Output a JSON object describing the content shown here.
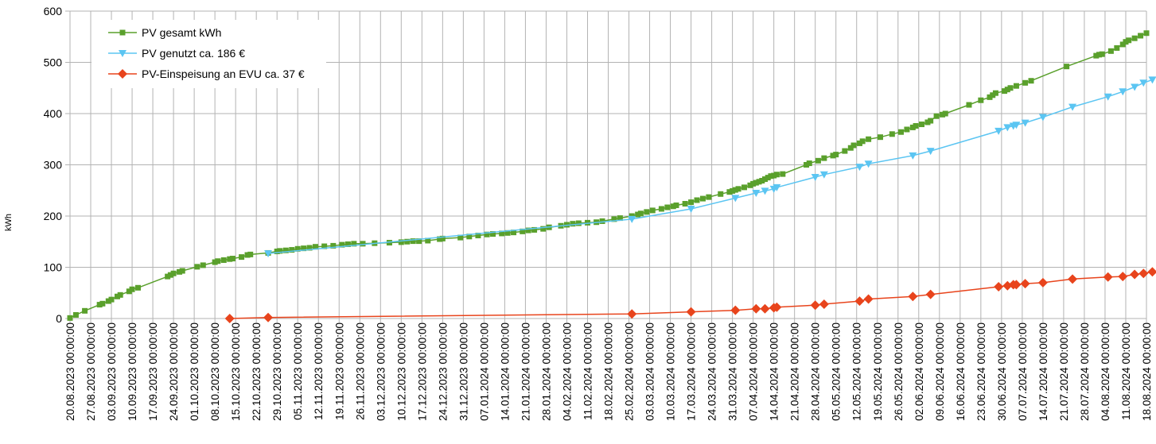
{
  "chart_data": {
    "type": "line",
    "ylabel": "kWh",
    "ylim": [
      0,
      600
    ],
    "yticks": [
      0,
      100,
      200,
      300,
      400,
      500,
      600
    ],
    "xlim": [
      "2023-08-20",
      "2024-08-18"
    ],
    "x_tick_labels": [
      "20.08.2023 00:00:00",
      "27.08.2023 00:00:00",
      "03.09.2023 00:00:00",
      "10.09.2023 00:00:00",
      "17.09.2023 00:00:00",
      "24.09.2023 00:00:00",
      "01.10.2023 00:00:00",
      "08.10.2023 00:00:00",
      "15.10.2023 00:00:00",
      "22.10.2023 00:00:00",
      "29.10.2023 00:00:00",
      "05.11.2023 00:00:00",
      "12.11.2023 00:00:00",
      "19.11.2023 00:00:00",
      "26.11.2023 00:00:00",
      "03.12.2023 00:00:00",
      "10.12.2023 00:00:00",
      "17.12.2023 00:00:00",
      "24.12.2023 00:00:00",
      "31.12.2023 00:00:00",
      "07.01.2024 00:00:00",
      "14.01.2024 00:00:00",
      "21.01.2024 00:00:00",
      "28.01.2024 00:00:00",
      "04.02.2024 00:00:00",
      "11.02.2024 00:00:00",
      "18.02.2024 00:00:00",
      "25.02.2024 00:00:00",
      "03.03.2024 00:00:00",
      "10.03.2024 00:00:00",
      "17.03.2024 00:00:00",
      "24.03.2024 00:00:00",
      "31.03.2024 00:00:00",
      "07.04.2024 00:00:00",
      "14.04.2024 00:00:00",
      "21.04.2024 00:00:00",
      "28.04.2024 00:00:00",
      "05.05.2024 00:00:00",
      "12.05.2024 00:00:00",
      "19.05.2024 00:00:00",
      "26.05.2024 00:00:00",
      "02.06.2024 00:00:00",
      "09.06.2024 00:00:00",
      "16.06.2024 00:00:00",
      "23.06.2024 00:00:00",
      "30.06.2024 00:00:00",
      "07.07.2024 00:00:00",
      "14.07.2024 00:00:00",
      "21.07.2024 00:00:00",
      "28.07.2024 00:00:00",
      "04.08.2024 00:00:00",
      "11.08.2024 00:00:00",
      "18.08.2024 00:00:00"
    ],
    "grid": true,
    "legend_position": "top-left",
    "series": [
      {
        "name": "PV gesamt kWh",
        "color": "#5aa02c",
        "marker": "square",
        "points": [
          [
            "2023-08-20",
            1
          ],
          [
            "2023-08-22",
            7
          ],
          [
            "2023-08-25",
            15
          ],
          [
            "2023-08-30",
            27
          ],
          [
            "2023-08-31",
            29
          ],
          [
            "2023-09-02",
            34
          ],
          [
            "2023-09-03",
            37
          ],
          [
            "2023-09-05",
            43
          ],
          [
            "2023-09-06",
            46
          ],
          [
            "2023-09-09",
            53
          ],
          [
            "2023-09-10",
            57
          ],
          [
            "2023-09-12",
            60
          ],
          [
            "2023-09-22",
            82
          ],
          [
            "2023-09-23",
            85
          ],
          [
            "2023-09-24",
            88
          ],
          [
            "2023-09-26",
            91
          ],
          [
            "2023-09-27",
            93
          ],
          [
            "2023-10-02",
            101
          ],
          [
            "2023-10-04",
            104
          ],
          [
            "2023-10-08",
            110
          ],
          [
            "2023-10-09",
            112
          ],
          [
            "2023-10-11",
            114
          ],
          [
            "2023-10-13",
            116
          ],
          [
            "2023-10-14",
            117
          ],
          [
            "2023-10-17",
            120
          ],
          [
            "2023-10-19",
            124
          ],
          [
            "2023-10-20",
            125
          ],
          [
            "2023-10-26",
            128
          ],
          [
            "2023-10-29",
            131
          ],
          [
            "2023-10-30",
            132
          ],
          [
            "2023-11-01",
            133
          ],
          [
            "2023-11-03",
            134
          ],
          [
            "2023-11-05",
            136
          ],
          [
            "2023-11-07",
            137
          ],
          [
            "2023-11-09",
            138
          ],
          [
            "2023-11-11",
            140
          ],
          [
            "2023-11-14",
            141
          ],
          [
            "2023-11-17",
            142
          ],
          [
            "2023-11-20",
            144
          ],
          [
            "2023-11-22",
            145
          ],
          [
            "2023-11-24",
            146
          ],
          [
            "2023-11-27",
            146
          ],
          [
            "2023-12-01",
            147
          ],
          [
            "2023-12-06",
            148
          ],
          [
            "2023-12-10",
            149
          ],
          [
            "2023-12-12",
            150
          ],
          [
            "2023-12-14",
            151
          ],
          [
            "2023-12-16",
            151
          ],
          [
            "2023-12-19",
            152
          ],
          [
            "2023-12-23",
            155
          ],
          [
            "2023-12-24",
            156
          ],
          [
            "2023-12-30",
            158
          ],
          [
            "2024-01-02",
            160
          ],
          [
            "2024-01-05",
            162
          ],
          [
            "2024-01-08",
            164
          ],
          [
            "2024-01-10",
            165
          ],
          [
            "2024-01-13",
            166
          ],
          [
            "2024-01-15",
            167
          ],
          [
            "2024-01-17",
            168
          ],
          [
            "2024-01-20",
            170
          ],
          [
            "2024-01-22",
            172
          ],
          [
            "2024-01-24",
            173
          ],
          [
            "2024-01-27",
            175
          ],
          [
            "2024-01-29",
            178
          ],
          [
            "2024-02-02",
            181
          ],
          [
            "2024-02-04",
            183
          ],
          [
            "2024-02-06",
            185
          ],
          [
            "2024-02-08",
            186
          ],
          [
            "2024-02-11",
            187
          ],
          [
            "2024-02-14",
            188
          ],
          [
            "2024-02-16",
            190
          ],
          [
            "2024-02-20",
            194
          ],
          [
            "2024-02-22",
            196
          ],
          [
            "2024-02-26",
            200
          ],
          [
            "2024-02-28",
            203
          ],
          [
            "2024-02-29",
            205
          ],
          [
            "2024-03-02",
            208
          ],
          [
            "2024-03-04",
            211
          ],
          [
            "2024-03-07",
            214
          ],
          [
            "2024-03-09",
            217
          ],
          [
            "2024-03-11",
            219
          ],
          [
            "2024-03-12",
            221
          ],
          [
            "2024-03-15",
            224
          ],
          [
            "2024-03-17",
            227
          ],
          [
            "2024-03-19",
            231
          ],
          [
            "2024-03-21",
            234
          ],
          [
            "2024-03-23",
            237
          ],
          [
            "2024-03-27",
            243
          ],
          [
            "2024-03-30",
            247
          ],
          [
            "2024-03-31",
            249
          ],
          [
            "2024-04-01",
            251
          ],
          [
            "2024-04-02",
            253
          ],
          [
            "2024-04-04",
            256
          ],
          [
            "2024-04-06",
            260
          ],
          [
            "2024-04-07",
            263
          ],
          [
            "2024-04-08",
            265
          ],
          [
            "2024-04-09",
            267
          ],
          [
            "2024-04-10",
            269
          ],
          [
            "2024-04-11",
            272
          ],
          [
            "2024-04-12",
            275
          ],
          [
            "2024-04-13",
            278
          ],
          [
            "2024-04-14",
            279
          ],
          [
            "2024-04-15",
            281
          ],
          [
            "2024-04-17",
            282
          ],
          [
            "2024-04-25",
            300
          ],
          [
            "2024-04-26",
            303
          ],
          [
            "2024-04-29",
            308
          ],
          [
            "2024-05-01",
            313
          ],
          [
            "2024-05-04",
            318
          ],
          [
            "2024-05-05",
            320
          ],
          [
            "2024-05-08",
            327
          ],
          [
            "2024-05-10",
            333
          ],
          [
            "2024-05-11",
            338
          ],
          [
            "2024-05-13",
            342
          ],
          [
            "2024-05-14",
            346
          ],
          [
            "2024-05-16",
            350
          ],
          [
            "2024-05-20",
            354
          ],
          [
            "2024-05-24",
            360
          ],
          [
            "2024-05-27",
            364
          ],
          [
            "2024-05-29",
            369
          ],
          [
            "2024-05-31",
            373
          ],
          [
            "2024-06-01",
            376
          ],
          [
            "2024-06-03",
            379
          ],
          [
            "2024-06-05",
            383
          ],
          [
            "2024-06-06",
            386
          ],
          [
            "2024-06-08",
            395
          ],
          [
            "2024-06-10",
            398
          ],
          [
            "2024-06-11",
            400
          ],
          [
            "2024-06-19",
            417
          ],
          [
            "2024-06-23",
            426
          ],
          [
            "2024-06-26",
            432
          ],
          [
            "2024-06-27",
            436
          ],
          [
            "2024-06-28",
            440
          ],
          [
            "2024-07-01",
            444
          ],
          [
            "2024-07-02",
            447
          ],
          [
            "2024-07-03",
            450
          ],
          [
            "2024-07-05",
            454
          ],
          [
            "2024-07-08",
            460
          ],
          [
            "2024-07-10",
            464
          ],
          [
            "2024-07-22",
            492
          ],
          [
            "2024-08-01",
            513
          ],
          [
            "2024-08-02",
            515
          ],
          [
            "2024-08-03",
            516
          ],
          [
            "2024-08-06",
            522
          ],
          [
            "2024-08-08",
            528
          ],
          [
            "2024-08-10",
            535
          ],
          [
            "2024-08-11",
            540
          ],
          [
            "2024-08-12",
            543
          ],
          [
            "2024-08-14",
            547
          ],
          [
            "2024-08-16",
            552
          ],
          [
            "2024-08-18",
            557
          ]
        ]
      },
      {
        "name": "PV genutzt ca. 186 €",
        "color": "#5bc5f2",
        "marker": "triangle-down",
        "points": [
          [
            "2023-10-26",
            127
          ],
          [
            "2024-02-26",
            194
          ],
          [
            "2024-03-17",
            214
          ],
          [
            "2024-04-01",
            235
          ],
          [
            "2024-04-08",
            245
          ],
          [
            "2024-04-11",
            249
          ],
          [
            "2024-04-14",
            253
          ],
          [
            "2024-04-15",
            256
          ],
          [
            "2024-04-28",
            276
          ],
          [
            "2024-05-01",
            281
          ],
          [
            "2024-05-13",
            296
          ],
          [
            "2024-05-16",
            302
          ],
          [
            "2024-05-31",
            318
          ],
          [
            "2024-06-06",
            327
          ],
          [
            "2024-06-29",
            366
          ],
          [
            "2024-07-02",
            373
          ],
          [
            "2024-07-04",
            376
          ],
          [
            "2024-07-05",
            378
          ],
          [
            "2024-07-08",
            382
          ],
          [
            "2024-07-14",
            393
          ],
          [
            "2024-07-24",
            413
          ],
          [
            "2024-08-05",
            433
          ],
          [
            "2024-08-10",
            443
          ],
          [
            "2024-08-14",
            452
          ],
          [
            "2024-08-17",
            460
          ],
          [
            "2024-08-20",
            466
          ]
        ]
      },
      {
        "name": "PV-Einspeisung an EVU ca. 37 €",
        "color": "#e8441c",
        "marker": "diamond",
        "points": [
          [
            "2023-10-13",
            0
          ],
          [
            "2023-10-26",
            2
          ],
          [
            "2024-02-26",
            9
          ],
          [
            "2024-03-17",
            13
          ],
          [
            "2024-04-01",
            16
          ],
          [
            "2024-04-08",
            19
          ],
          [
            "2024-04-11",
            19
          ],
          [
            "2024-04-14",
            21
          ],
          [
            "2024-04-15",
            22
          ],
          [
            "2024-04-28",
            26
          ],
          [
            "2024-05-01",
            28
          ],
          [
            "2024-05-13",
            34
          ],
          [
            "2024-05-16",
            38
          ],
          [
            "2024-05-31",
            43
          ],
          [
            "2024-06-06",
            47
          ],
          [
            "2024-06-29",
            62
          ],
          [
            "2024-07-02",
            64
          ],
          [
            "2024-07-04",
            66
          ],
          [
            "2024-07-05",
            66
          ],
          [
            "2024-07-08",
            68
          ],
          [
            "2024-07-14",
            70
          ],
          [
            "2024-07-24",
            77
          ],
          [
            "2024-08-05",
            81
          ],
          [
            "2024-08-10",
            82
          ],
          [
            "2024-08-14",
            86
          ],
          [
            "2024-08-17",
            88
          ],
          [
            "2024-08-20",
            91
          ]
        ]
      }
    ]
  }
}
